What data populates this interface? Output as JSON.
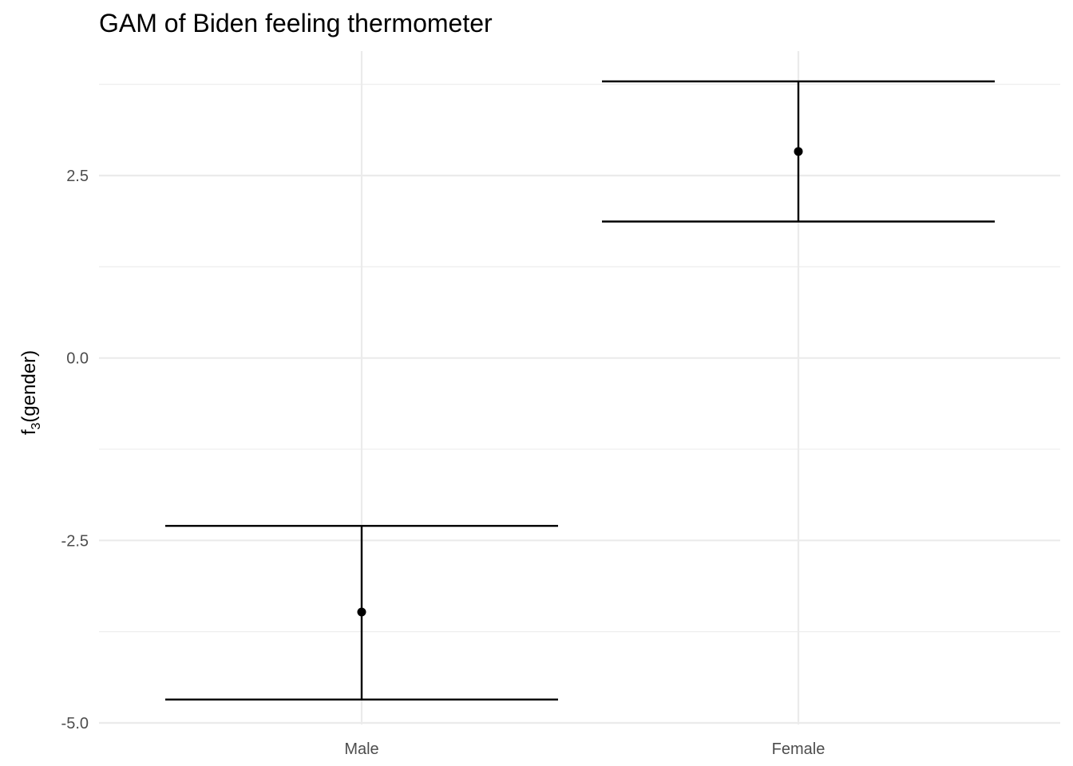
{
  "chart_data": {
    "type": "errorbar",
    "title": "GAM of Biden feeling thermometer",
    "xlabel": "",
    "ylabel_main": "f",
    "ylabel_sub": "3",
    "ylabel_rest": "(gender)",
    "categories": [
      "Male",
      "Female"
    ],
    "points": [
      {
        "category": "Male",
        "estimate": -3.48,
        "lower": -4.68,
        "upper": -2.3
      },
      {
        "category": "Female",
        "estimate": 2.83,
        "lower": 1.87,
        "upper": 3.79
      }
    ],
    "ylim": [
      -5.0,
      3.79
    ],
    "yticks": [
      -5.0,
      -2.5,
      0.0,
      2.5
    ],
    "ytick_labels": [
      "-5.0",
      "-2.5",
      "0.0",
      "2.5"
    ],
    "grid": true,
    "legend": "none"
  }
}
